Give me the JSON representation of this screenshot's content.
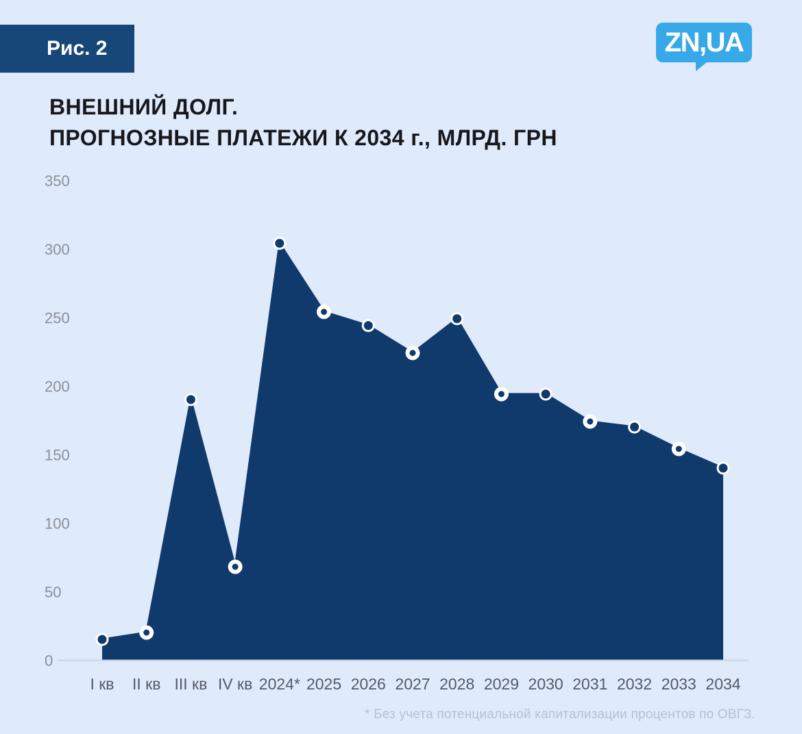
{
  "badge": {
    "label": "Рис. 2"
  },
  "logo": {
    "text": "ZN,UA",
    "color": "#38a9e8"
  },
  "title": {
    "line1": "ВНЕШНИЙ ДОЛГ.",
    "line2": "ПРОГНОЗНЫЕ ПЛАТЕЖИ К 2034 г., МЛРД. ГРН"
  },
  "footnote": "* Без учета потенциальной капитализации процентов по ОВГЗ.",
  "colors": {
    "background": "#dfeafb",
    "area": "#113a6c",
    "badge": "#174679",
    "logo_blue": "#38a9e8",
    "axis_label_gray": "#8b9099",
    "x_label_gray": "#555b66",
    "baseline": "#c7d5eb",
    "footnote_gray": "#b4c0d6",
    "title_dark": "#17181c",
    "marker_ring": "#ffffff"
  },
  "chart_data": {
    "type": "area",
    "title": "ВНЕШНИЙ ДОЛГ. ПРОГНОЗНЫЕ ПЛАТЕЖИ К 2034 г., МЛРД. ГРН",
    "categories": [
      "I кв",
      "II кв",
      "III кв",
      "IV кв",
      "2024*",
      "2025",
      "2026",
      "2027",
      "2028",
      "2029",
      "2030",
      "2031",
      "2032",
      "2033",
      "2034"
    ],
    "values": [
      15,
      20,
      190,
      68,
      304,
      254,
      244,
      224,
      249,
      194,
      194,
      174,
      170,
      154,
      140
    ],
    "marker_styles": [
      "filled",
      "open",
      "filled",
      "open",
      "filled",
      "open",
      "filled",
      "open",
      "filled",
      "open",
      "filled",
      "open",
      "filled",
      "open",
      "filled"
    ],
    "yticks": [
      0,
      50,
      100,
      150,
      200,
      250,
      300,
      350
    ],
    "ylim": [
      0,
      350
    ],
    "xlabel": "",
    "ylabel": "млрд. грн",
    "grid": false,
    "legend": false
  }
}
